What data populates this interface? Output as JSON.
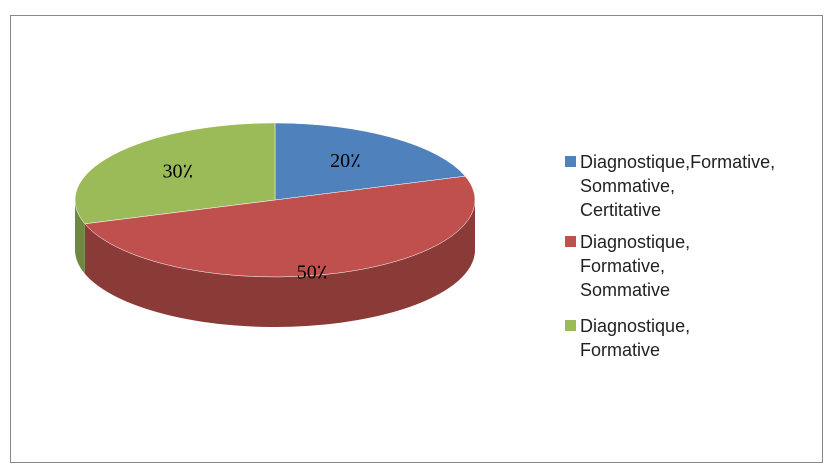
{
  "chart_data": {
    "type": "pie",
    "categories": [
      "Diagnostique,Formative, Sommative, Certitative",
      "Diagnostique, Formative, Sommative",
      "Diagnostique, Formative"
    ],
    "values": [
      20,
      50,
      30
    ],
    "value_labels": [
      "20٪",
      "50٪",
      "30٪"
    ],
    "colors": [
      "#4f81bd",
      "#c0504d",
      "#9bbb59"
    ],
    "legend": "right"
  }
}
